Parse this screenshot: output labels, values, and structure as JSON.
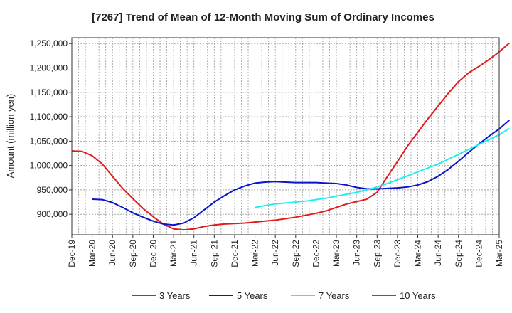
{
  "chart_data": {
    "type": "line",
    "title": "[7267]  Trend of Mean of 12-Month Moving Sum of Ordinary Incomes",
    "xlabel": "",
    "ylabel": "Amount (million yen)",
    "ylim": [
      858000,
      1262000
    ],
    "grid": true,
    "legend_position": "bottom",
    "x_tick_labels": [
      "Dec-19",
      "Mar-20",
      "Jun-20",
      "Sep-20",
      "Dec-20",
      "Mar-21",
      "Jun-21",
      "Sep-21",
      "Dec-21",
      "Mar-22",
      "Jun-22",
      "Sep-22",
      "Dec-22",
      "Mar-23",
      "Jun-23",
      "Sep-23",
      "Dec-23",
      "Mar-24",
      "Jun-24",
      "Sep-24",
      "Dec-24",
      "Mar-25"
    ],
    "y_ticks": [
      900000,
      950000,
      1000000,
      1050000,
      1100000,
      1150000,
      1200000,
      1250000
    ],
    "y_tick_labels": [
      "900,000",
      "950,000",
      "1,000,000",
      "1,050,000",
      "1,100,000",
      "1,150,000",
      "1,200,000",
      "1,250,000"
    ],
    "series": [
      {
        "name": "3 Years",
        "color": "#e31a1c",
        "points": [
          [
            0,
            1030000
          ],
          [
            1,
            1029000
          ],
          [
            2,
            1020000
          ],
          [
            3,
            1003000
          ],
          [
            4,
            978000
          ],
          [
            5,
            953000
          ],
          [
            6,
            932000
          ],
          [
            7,
            912000
          ],
          [
            8,
            895000
          ],
          [
            9,
            880000
          ],
          [
            10,
            870000
          ],
          [
            11,
            868000
          ],
          [
            12,
            870000
          ],
          [
            13,
            875000
          ],
          [
            14,
            878000
          ],
          [
            15,
            880000
          ],
          [
            16,
            881000
          ],
          [
            17,
            882000
          ],
          [
            18,
            884000
          ],
          [
            19,
            886000
          ],
          [
            20,
            888000
          ],
          [
            21,
            891000
          ],
          [
            22,
            894000
          ],
          [
            23,
            898000
          ],
          [
            24,
            902000
          ],
          [
            25,
            907000
          ],
          [
            26,
            914000
          ],
          [
            27,
            921000
          ],
          [
            28,
            926000
          ],
          [
            29,
            931000
          ],
          [
            30,
            945000
          ],
          [
            31,
            977000
          ],
          [
            32,
            1008000
          ],
          [
            33,
            1040000
          ],
          [
            34,
            1068000
          ],
          [
            35,
            1096000
          ],
          [
            36,
            1122000
          ],
          [
            37,
            1148000
          ],
          [
            38,
            1172000
          ],
          [
            39,
            1190000
          ],
          [
            40,
            1203000
          ],
          [
            41,
            1217000
          ],
          [
            42,
            1233000
          ],
          [
            43,
            1251000
          ]
        ]
      },
      {
        "name": "5 Years",
        "color": "#0a14cc",
        "points": [
          [
            2,
            931000
          ],
          [
            3,
            930000
          ],
          [
            4,
            924000
          ],
          [
            5,
            914000
          ],
          [
            6,
            903000
          ],
          [
            7,
            894000
          ],
          [
            8,
            886000
          ],
          [
            9,
            880000
          ],
          [
            10,
            878000
          ],
          [
            11,
            882000
          ],
          [
            12,
            893000
          ],
          [
            13,
            909000
          ],
          [
            14,
            925000
          ],
          [
            15,
            938000
          ],
          [
            16,
            950000
          ],
          [
            17,
            958000
          ],
          [
            18,
            964000
          ],
          [
            19,
            966000
          ],
          [
            20,
            967000
          ],
          [
            21,
            966000
          ],
          [
            22,
            965000
          ],
          [
            23,
            965000
          ],
          [
            24,
            965000
          ],
          [
            25,
            964000
          ],
          [
            26,
            963000
          ],
          [
            27,
            960000
          ],
          [
            28,
            955000
          ],
          [
            29,
            952000
          ],
          [
            30,
            952000
          ],
          [
            31,
            953000
          ],
          [
            32,
            954000
          ],
          [
            33,
            956000
          ],
          [
            34,
            960000
          ],
          [
            35,
            967000
          ],
          [
            36,
            978000
          ],
          [
            37,
            992000
          ],
          [
            38,
            1009000
          ],
          [
            39,
            1027000
          ],
          [
            40,
            1044000
          ],
          [
            41,
            1060000
          ],
          [
            42,
            1075000
          ],
          [
            43,
            1093000
          ]
        ]
      },
      {
        "name": "7 Years",
        "color": "#1ef0f0",
        "points": [
          [
            18,
            914000
          ],
          [
            19,
            918000
          ],
          [
            20,
            921000
          ],
          [
            21,
            923000
          ],
          [
            22,
            925000
          ],
          [
            23,
            927000
          ],
          [
            24,
            930000
          ],
          [
            25,
            933000
          ],
          [
            26,
            937000
          ],
          [
            27,
            941000
          ],
          [
            28,
            945000
          ],
          [
            29,
            950000
          ],
          [
            30,
            956000
          ],
          [
            31,
            963000
          ],
          [
            32,
            971000
          ],
          [
            33,
            979000
          ],
          [
            34,
            987000
          ],
          [
            35,
            995000
          ],
          [
            36,
            1003000
          ],
          [
            37,
            1013000
          ],
          [
            38,
            1023000
          ],
          [
            39,
            1033000
          ],
          [
            40,
            1043000
          ],
          [
            41,
            1053000
          ],
          [
            42,
            1063000
          ],
          [
            43,
            1076000
          ]
        ]
      },
      {
        "name": "10 Years",
        "color": "#1a8c1a",
        "points": []
      }
    ]
  }
}
